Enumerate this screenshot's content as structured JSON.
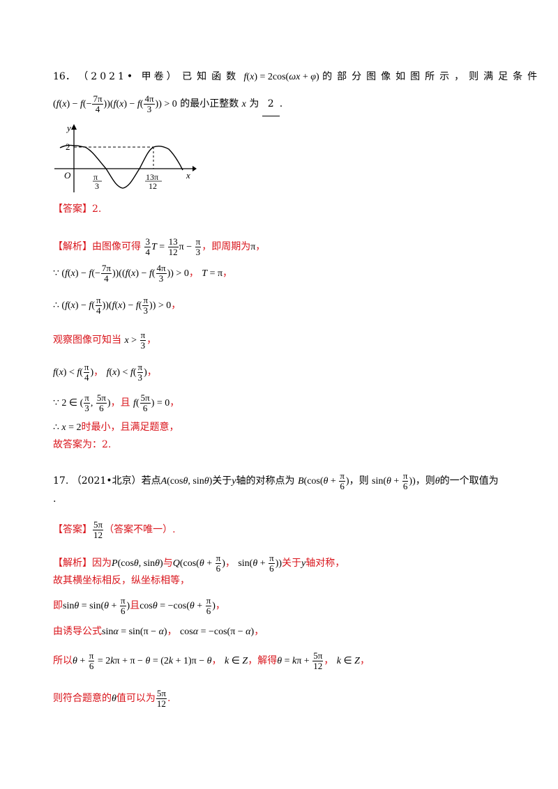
{
  "q16": {
    "number": "16．",
    "source": "（2021• 甲卷）",
    "stem1": "已知函数",
    "stem2": "的部分图像如图所示，则满足条件",
    "stem3": "的最小正整数",
    "stem4": "为",
    "answer_blank": "2",
    "period_end": ".",
    "graph": {
      "y_label": "y",
      "x_label": "x",
      "origin_label": "O",
      "peak_label": "2",
      "tick1_num": "π",
      "tick1_den": "3",
      "tick2_num": "13π",
      "tick2_den": "12"
    },
    "answer_tag": "【答案】",
    "answer_value": "2.",
    "analysis_tag": "【解析】",
    "a1": "由图像可得",
    "a1b": "，即周期为",
    "a1c": "，",
    "comma": "，",
    "a4": "观察图像可知当",
    "a6": "，且",
    "a7": "时最小，且满足题意，",
    "a8": "故答案为：2."
  },
  "q17": {
    "number": "17.",
    "source": "（2021•北京）",
    "stem1": "若点",
    "stem2": "关于",
    "stem3": "轴的对称点为",
    "stem4": "，则",
    "stem5": "的一个取值为",
    "stem6": ".",
    "answer_tag": "【答案】",
    "answer_note": "（答案不唯一）.",
    "analysis_tag": "【解析】",
    "a1": "因为",
    "a1b": "与",
    "a1c": "关于",
    "a1d": "轴对称，",
    "a2": "故其横坐标相反，纵坐标相等，",
    "a3": "即",
    "a3b": "且",
    "a4": "由诱导公式",
    "a5": "所以",
    "a5b": "，解得",
    "a6": "则符合题意的",
    "a6b": "值可以为",
    "a6c": "."
  }
}
